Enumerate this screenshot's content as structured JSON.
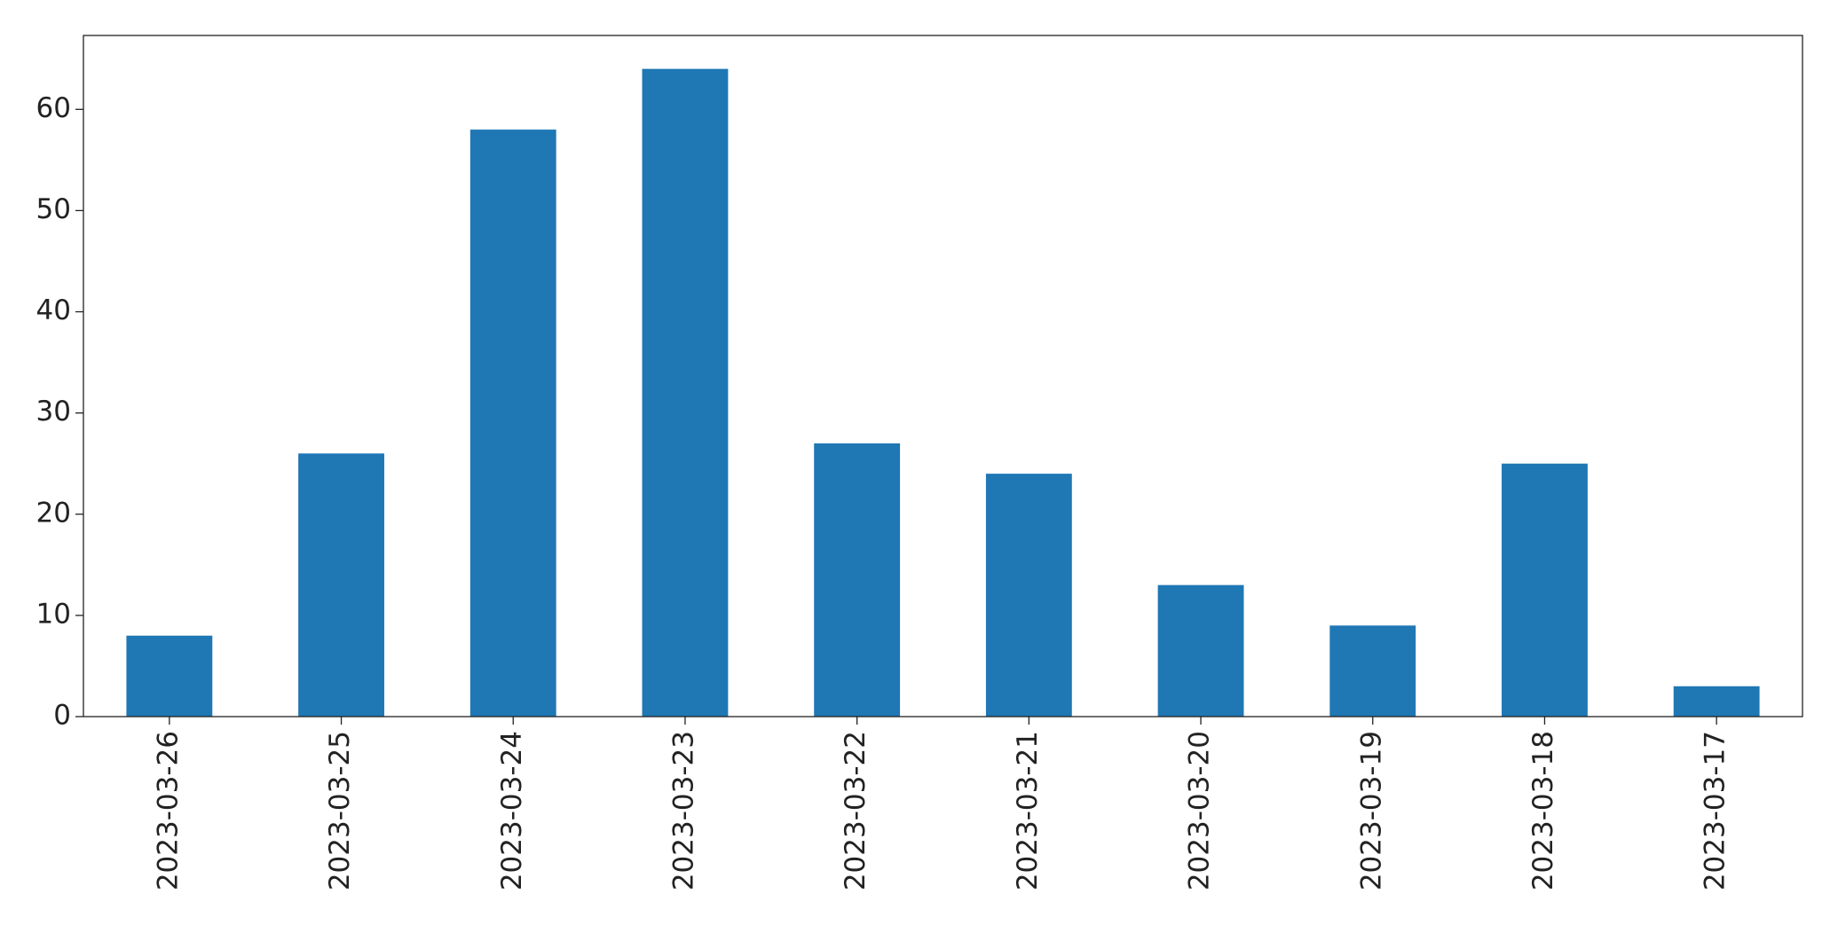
{
  "chart_data": {
    "type": "bar",
    "categories": [
      "2023-03-26",
      "2023-03-25",
      "2023-03-24",
      "2023-03-23",
      "2023-03-22",
      "2023-03-21",
      "2023-03-20",
      "2023-03-19",
      "2023-03-18",
      "2023-03-17"
    ],
    "values": [
      8,
      26,
      58,
      64,
      27,
      24,
      13,
      9,
      25,
      3
    ],
    "color": "#1f77b4",
    "ylim": [
      0,
      67.3
    ],
    "yticks": [
      0,
      10,
      20,
      30,
      40,
      50,
      60
    ],
    "grid": false
  }
}
